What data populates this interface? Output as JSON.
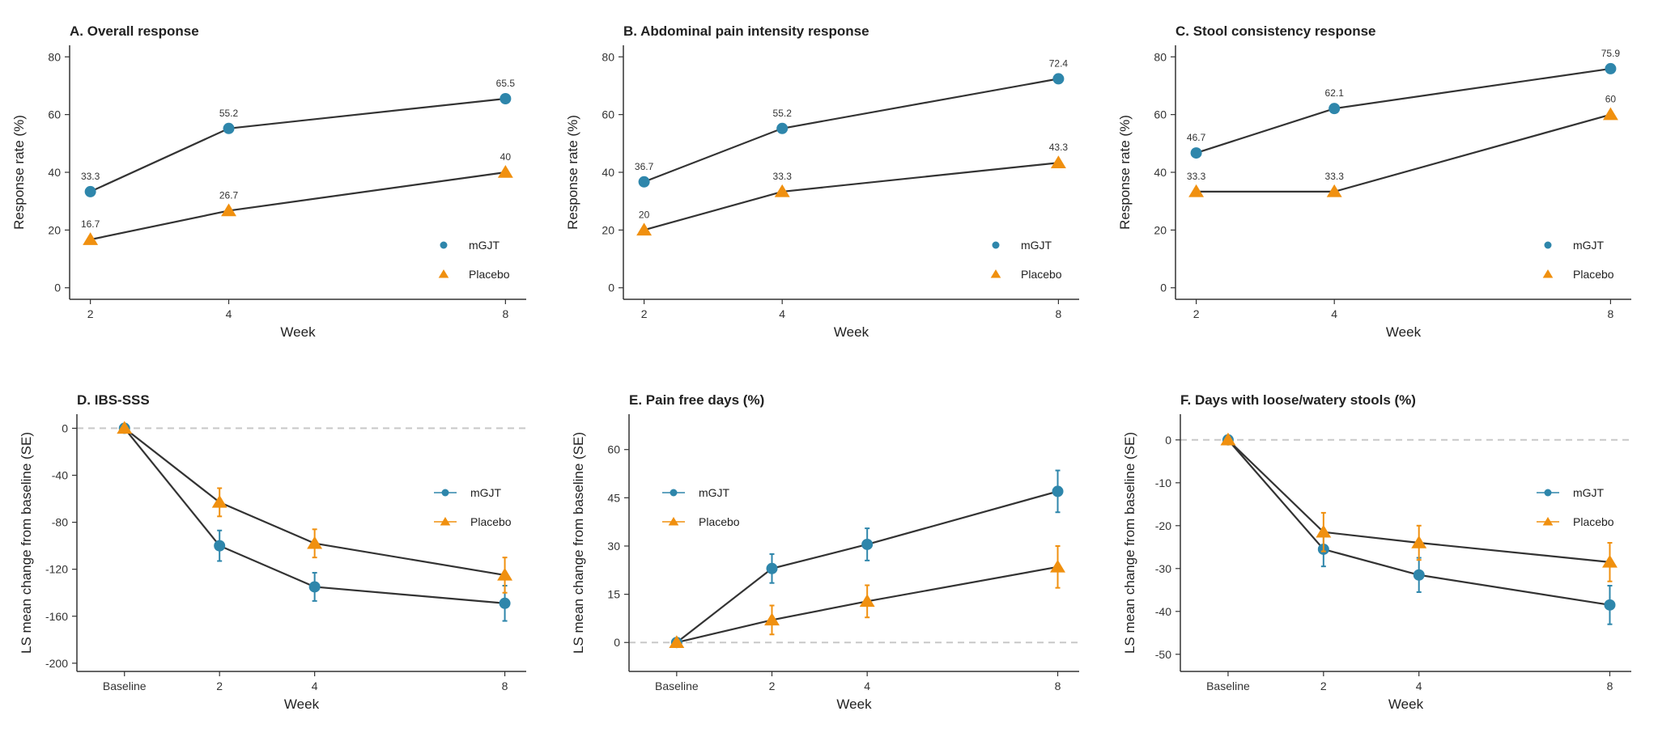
{
  "colors": {
    "mGJT": "#2e86ab",
    "Placebo": "#f0900f",
    "line": "#333333",
    "ref": "#c8c8c8"
  },
  "chart_data": [
    {
      "type": "line",
      "title": "A. Overall response",
      "xlabel": "Week",
      "ylabel": "Response rate (%)",
      "x": [
        "2",
        "4",
        "8"
      ],
      "x_numeric": [
        2,
        4,
        8
      ],
      "ylim": [
        -4,
        84
      ],
      "yticks": [
        0,
        20,
        40,
        60,
        80
      ],
      "legend_position": "bottom-right",
      "series": [
        {
          "name": "mGJT",
          "values": [
            33.3,
            55.2,
            65.5
          ],
          "labels": [
            "33.3",
            "55.2",
            "65.5"
          ],
          "marker": "circle"
        },
        {
          "name": "Placebo",
          "values": [
            16.7,
            26.7,
            40
          ],
          "labels": [
            "16.7",
            "26.7",
            "40"
          ],
          "marker": "triangle"
        }
      ]
    },
    {
      "type": "line",
      "title": "B. Abdominal pain intensity response",
      "xlabel": "Week",
      "ylabel": "Response rate (%)",
      "x": [
        "2",
        "4",
        "8"
      ],
      "x_numeric": [
        2,
        4,
        8
      ],
      "ylim": [
        -4,
        84
      ],
      "yticks": [
        0,
        20,
        40,
        60,
        80
      ],
      "legend_position": "bottom-right",
      "series": [
        {
          "name": "mGJT",
          "values": [
            36.7,
            55.2,
            72.4
          ],
          "labels": [
            "36.7",
            "55.2",
            "72.4"
          ],
          "marker": "circle"
        },
        {
          "name": "Placebo",
          "values": [
            20,
            33.3,
            43.3
          ],
          "labels": [
            "20",
            "33.3",
            "43.3"
          ],
          "marker": "triangle"
        }
      ]
    },
    {
      "type": "line",
      "title": "C. Stool consistency response",
      "xlabel": "Week",
      "ylabel": "Response rate (%)",
      "x": [
        "2",
        "4",
        "8"
      ],
      "x_numeric": [
        2,
        4,
        8
      ],
      "ylim": [
        -4,
        84
      ],
      "yticks": [
        0,
        20,
        40,
        60,
        80
      ],
      "legend_position": "bottom-right",
      "series": [
        {
          "name": "mGJT",
          "values": [
            46.7,
            62.1,
            75.9
          ],
          "labels": [
            "46.7",
            "62.1",
            "75.9"
          ],
          "marker": "circle"
        },
        {
          "name": "Placebo",
          "values": [
            33.3,
            33.3,
            60
          ],
          "labels": [
            "33.3",
            "33.3",
            "60"
          ],
          "marker": "triangle"
        }
      ]
    },
    {
      "type": "line",
      "title": "D. IBS-SSS",
      "xlabel": "Week",
      "ylabel": "LS mean change from baseline (SE)",
      "x": [
        "Baseline",
        "2",
        "4",
        "8"
      ],
      "x_numeric": [
        0,
        2,
        4,
        8
      ],
      "ylim": [
        -207,
        12
      ],
      "yticks": [
        0,
        -40,
        -80,
        -120,
        -160,
        -200
      ],
      "reference_line": 0,
      "legend_position": "top-right",
      "series": [
        {
          "name": "mGJT",
          "values": [
            0,
            -100,
            -135,
            -149
          ],
          "se": [
            0,
            13,
            12,
            15
          ],
          "marker": "circle"
        },
        {
          "name": "Placebo",
          "values": [
            0,
            -63,
            -98,
            -125
          ],
          "se": [
            0,
            12,
            12,
            15
          ],
          "marker": "triangle"
        }
      ]
    },
    {
      "type": "line",
      "title": "E. Pain free days (%)",
      "xlabel": "Week",
      "ylabel": "LS mean change from baseline (SE)",
      "x": [
        "Baseline",
        "2",
        "4",
        "8"
      ],
      "x_numeric": [
        0,
        2,
        4,
        8
      ],
      "ylim": [
        -9,
        71
      ],
      "yticks": [
        0,
        15,
        30,
        45,
        60
      ],
      "reference_line": 0,
      "legend_position": "top-left",
      "series": [
        {
          "name": "mGJT",
          "values": [
            0,
            23,
            30.5,
            47
          ],
          "se": [
            0,
            4.5,
            5,
            6.5
          ],
          "marker": "circle"
        },
        {
          "name": "Placebo",
          "values": [
            0,
            7,
            12.8,
            23.5
          ],
          "se": [
            0,
            4.5,
            5,
            6.5
          ],
          "marker": "triangle"
        }
      ]
    },
    {
      "type": "line",
      "title": "F. Days with loose/watery stools (%)",
      "xlabel": "Week",
      "ylabel": "LS mean change from baseline (SE)",
      "x": [
        "Baseline",
        "2",
        "4",
        "8"
      ],
      "x_numeric": [
        0,
        2,
        4,
        8
      ],
      "ylim": [
        -54,
        6
      ],
      "yticks": [
        0,
        -10,
        -20,
        -30,
        -40,
        -50
      ],
      "reference_line": 0,
      "legend_position": "top-right",
      "series": [
        {
          "name": "mGJT",
          "values": [
            0,
            -25.5,
            -31.5,
            -38.5
          ],
          "se": [
            0,
            4,
            4,
            4.5
          ],
          "marker": "circle"
        },
        {
          "name": "Placebo",
          "values": [
            0,
            -21.5,
            -24,
            -28.5
          ],
          "se": [
            0,
            4.5,
            4,
            4.5
          ],
          "marker": "triangle"
        }
      ]
    }
  ]
}
